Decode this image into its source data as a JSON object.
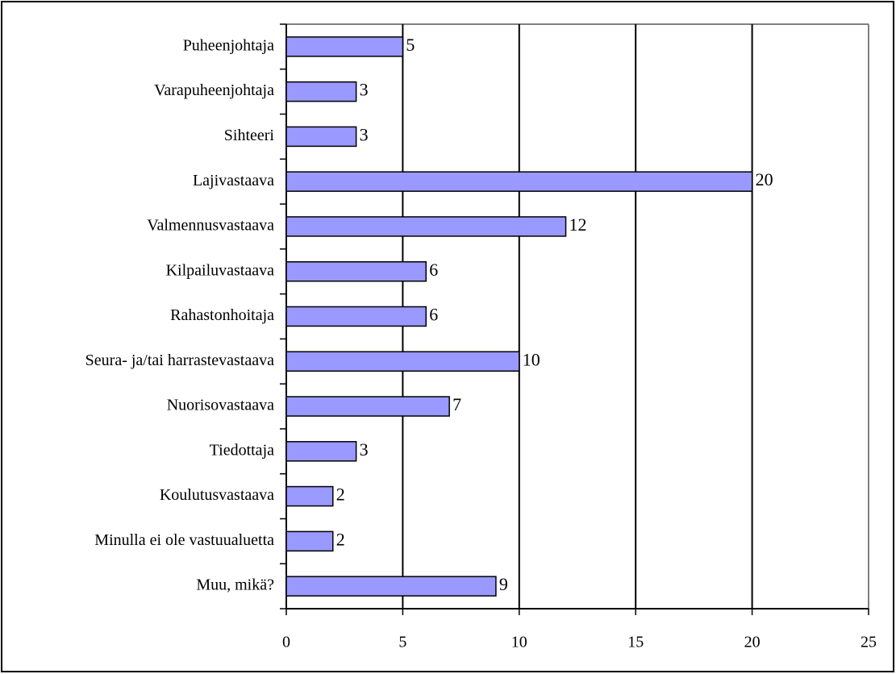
{
  "chart_data": {
    "type": "barh",
    "categories": [
      "Puheenjohtaja",
      "Varapuheenjohtaja",
      "Sihteeri",
      "Lajivastaava",
      "Valmennusvastaava",
      "Kilpailuvastaava",
      "Rahastonhoitaja",
      "Seura- ja/tai harrastevastaava",
      "Nuorisovastaava",
      "Tiedottaja",
      "Koulutusvastaava",
      "Minulla ei ole vastuualuetta",
      "Muu, mikä?"
    ],
    "values": [
      5,
      3,
      3,
      20,
      12,
      6,
      6,
      10,
      7,
      3,
      2,
      2,
      9
    ],
    "color": "#9999ff",
    "xlim": [
      0,
      25
    ],
    "xticks": [
      0,
      5,
      10,
      15,
      20,
      25
    ],
    "grid": true
  }
}
